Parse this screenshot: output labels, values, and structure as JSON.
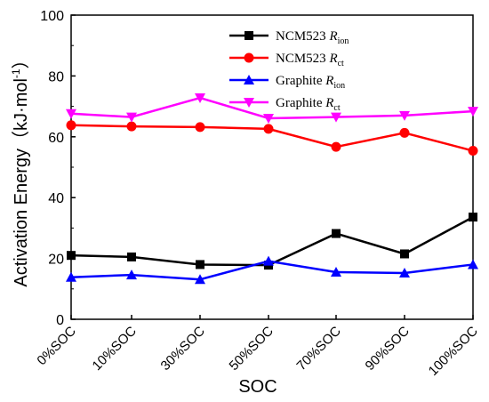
{
  "chart_data": {
    "type": "line",
    "categories": [
      "0%SOC",
      "10%SOC",
      "30%SOC",
      "50%SOC",
      "70%SOC",
      "90%SOC",
      "100%SOC"
    ],
    "series": [
      {
        "name": "NCM523 R",
        "subscript": "ion",
        "color": "#000000",
        "marker": "square",
        "values": [
          21,
          20.5,
          18,
          17.8,
          28.2,
          21.5,
          33.6
        ]
      },
      {
        "name": "NCM523 R",
        "subscript": "ct",
        "color": "#ff0000",
        "marker": "circle",
        "values": [
          63.8,
          63.4,
          63.2,
          62.6,
          56.7,
          61.3,
          55.4
        ]
      },
      {
        "name": "Graphite R",
        "subscript": "ion",
        "color": "#0000ff",
        "marker": "triangle-up",
        "values": [
          13.8,
          14.6,
          13.1,
          19.1,
          15.5,
          15.2,
          18
        ]
      },
      {
        "name": "Graphite R",
        "subscript": "ct",
        "color": "#ff00ff",
        "marker": "triangle-down",
        "values": [
          67.6,
          66.5,
          72.8,
          66.1,
          66.5,
          67,
          68.4
        ]
      }
    ],
    "xlabel": "SOC",
    "ylabel": "Activation Energy（kJ·mol",
    "ylabel_sup": "-1",
    "ylabel_close": "）",
    "ylim": [
      0,
      100
    ],
    "yticks": [
      0,
      20,
      40,
      60,
      80,
      100
    ],
    "legend_position": "top-center",
    "grid": false
  }
}
